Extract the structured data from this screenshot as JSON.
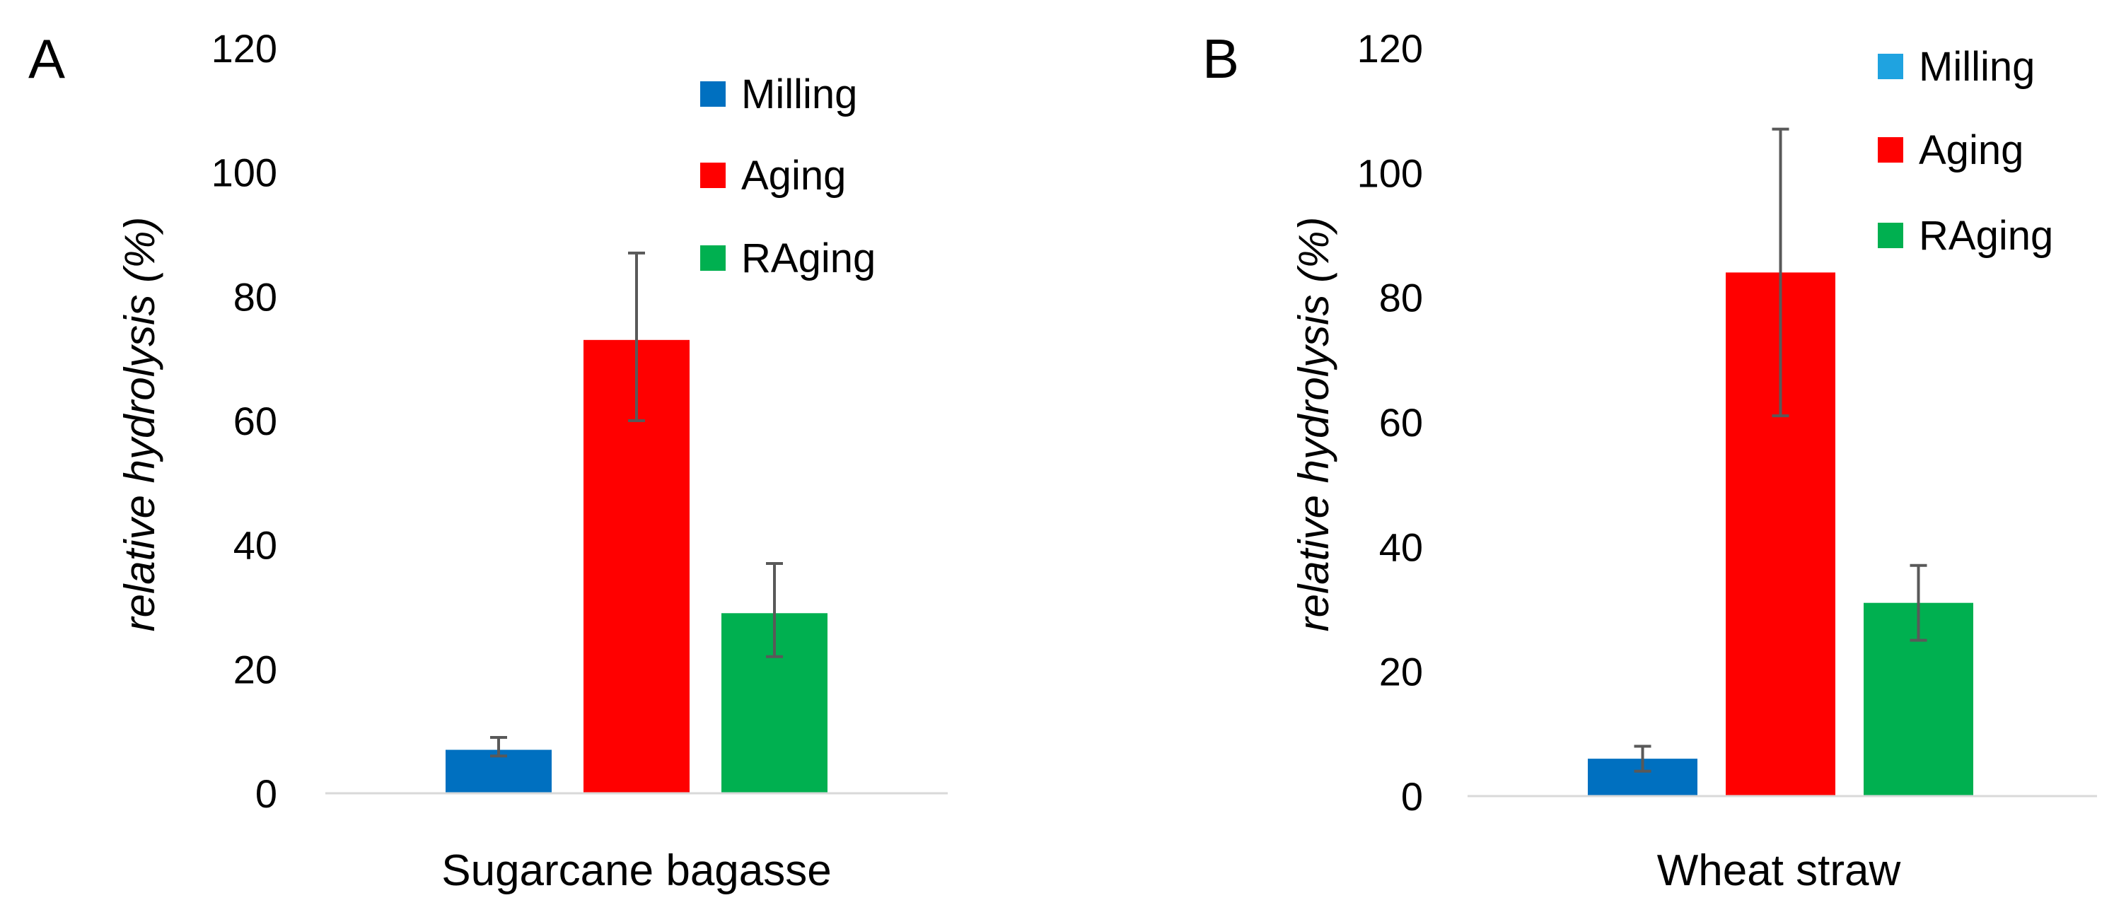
{
  "chart_data": [
    {
      "type": "bar",
      "panel_label": "A",
      "title": "",
      "category": "Sugarcane bagasse",
      "xlabel": "Sugarcane bagasse",
      "ylabel": "relative hydrolysis (%)",
      "ylim": [
        0,
        120
      ],
      "yticks": [
        "0",
        "20",
        "40",
        "60",
        "80",
        "100",
        "120"
      ],
      "grid": false,
      "legend_position": "top-right",
      "series": [
        {
          "name": "Milling",
          "color": "#0070c0",
          "value": 7,
          "error_low": 6,
          "error_high": 9
        },
        {
          "name": "Aging",
          "color": "#ff0000",
          "value": 73,
          "error_low": 60,
          "error_high": 87
        },
        {
          "name": "RAging",
          "color": "#00b050",
          "value": 29,
          "error_low": 22,
          "error_high": 37
        }
      ]
    },
    {
      "type": "bar",
      "panel_label": "B",
      "title": "",
      "category": "Wheat straw",
      "xlabel": "Wheat straw",
      "ylabel": "relative hydrolysis (%)",
      "ylim": [
        0,
        120
      ],
      "yticks": [
        "0",
        "20",
        "40",
        "60",
        "80",
        "100",
        "120"
      ],
      "grid": false,
      "legend_position": "top-right",
      "series": [
        {
          "name": "Milling",
          "color": "#0070c0",
          "legend_color": "#1fa3e0",
          "value": 6,
          "error_low": 4,
          "error_high": 8
        },
        {
          "name": "Aging",
          "color": "#ff0000",
          "legend_color": "#ff0000",
          "value": 84,
          "error_low": 61,
          "error_high": 107
        },
        {
          "name": "RAging",
          "color": "#00b050",
          "legend_color": "#00b050",
          "value": 31,
          "error_low": 25,
          "error_high": 37
        }
      ]
    }
  ]
}
